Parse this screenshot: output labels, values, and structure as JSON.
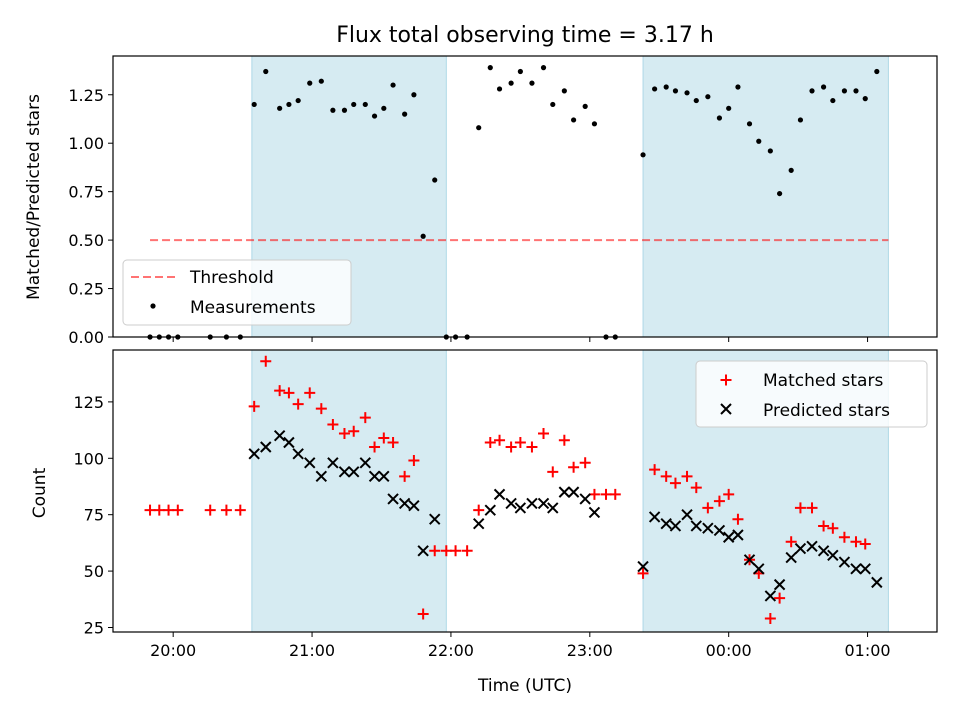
{
  "chart_data": [
    {
      "type": "scatter",
      "title": "Flux total observing time = 3.17 h",
      "xlabel": "",
      "ylabel": "Matched/Predicted stars",
      "xlim": [
        "19:34",
        "01:30"
      ],
      "ylim": [
        0,
        1.45
      ],
      "yticks": [
        "0.00",
        "0.25",
        "0.50",
        "0.75",
        "1.00",
        "1.25"
      ],
      "shaded_ranges": [
        [
          "20:34",
          "21:58"
        ],
        [
          "23:23",
          "01:09"
        ]
      ],
      "threshold": 0.5,
      "threshold_range": [
        "19:50",
        "01:09"
      ],
      "legend": {
        "position": "lower-left",
        "entries": [
          "Threshold",
          "Measurements"
        ]
      },
      "series": [
        {
          "name": "Measurements",
          "points": [
            [
              "19:50",
              0
            ],
            [
              "19:54",
              0
            ],
            [
              "19:58",
              0
            ],
            [
              "20:02",
              0
            ],
            [
              "20:16",
              0
            ],
            [
              "20:23",
              0
            ],
            [
              "20:29",
              0
            ],
            [
              "20:35",
              1.2
            ],
            [
              "20:40",
              1.37
            ],
            [
              "20:46",
              1.18
            ],
            [
              "20:50",
              1.2
            ],
            [
              "20:54",
              1.22
            ],
            [
              "20:59",
              1.31
            ],
            [
              "21:04",
              1.32
            ],
            [
              "21:09",
              1.17
            ],
            [
              "21:14",
              1.17
            ],
            [
              "21:18",
              1.2
            ],
            [
              "21:23",
              1.2
            ],
            [
              "21:27",
              1.14
            ],
            [
              "21:31",
              1.18
            ],
            [
              "21:35",
              1.3
            ],
            [
              "21:40",
              1.15
            ],
            [
              "21:44",
              1.25
            ],
            [
              "21:48",
              0.52
            ],
            [
              "21:53",
              0.81
            ],
            [
              "21:58",
              0
            ],
            [
              "22:02",
              0
            ],
            [
              "22:07",
              0
            ],
            [
              "22:12",
              1.08
            ],
            [
              "22:17",
              1.39
            ],
            [
              "22:21",
              1.28
            ],
            [
              "22:26",
              1.31
            ],
            [
              "22:30",
              1.37
            ],
            [
              "22:35",
              1.31
            ],
            [
              "22:40",
              1.39
            ],
            [
              "22:44",
              1.2
            ],
            [
              "22:49",
              1.27
            ],
            [
              "22:53",
              1.12
            ],
            [
              "22:58",
              1.19
            ],
            [
              "23:02",
              1.1
            ],
            [
              "23:07",
              0
            ],
            [
              "23:11",
              0
            ],
            [
              "23:23",
              0.94
            ],
            [
              "23:28",
              1.28
            ],
            [
              "23:33",
              1.29
            ],
            [
              "23:37",
              1.27
            ],
            [
              "23:42",
              1.26
            ],
            [
              "23:46",
              1.22
            ],
            [
              "23:51",
              1.24
            ],
            [
              "23:56",
              1.13
            ],
            [
              "00:00",
              1.18
            ],
            [
              "00:04",
              1.29
            ],
            [
              "00:09",
              1.1
            ],
            [
              "00:13",
              1.01
            ],
            [
              "00:18",
              0.96
            ],
            [
              "00:22",
              0.74
            ],
            [
              "00:27",
              0.86
            ],
            [
              "00:31",
              1.12
            ],
            [
              "00:36",
              1.27
            ],
            [
              "00:41",
              1.29
            ],
            [
              "00:45",
              1.22
            ],
            [
              "00:50",
              1.27
            ],
            [
              "00:55",
              1.27
            ],
            [
              "00:59",
              1.23
            ],
            [
              "01:04",
              1.37
            ]
          ]
        }
      ]
    },
    {
      "type": "scatter",
      "title": "",
      "xlabel": "Time (UTC)",
      "ylabel": "Count",
      "xlim": [
        "19:34",
        "01:30"
      ],
      "ylim": [
        23,
        148
      ],
      "xticks": [
        "20:00",
        "21:00",
        "22:00",
        "23:00",
        "00:00",
        "01:00"
      ],
      "yticks": [
        "25",
        "50",
        "75",
        "100",
        "125"
      ],
      "shaded_ranges": [
        [
          "20:34",
          "21:58"
        ],
        [
          "23:23",
          "01:09"
        ]
      ],
      "legend": {
        "position": "upper-right",
        "entries": [
          "Matched stars",
          "Predicted stars"
        ]
      },
      "series": [
        {
          "name": "Matched stars",
          "points": [
            [
              "19:50",
              77
            ],
            [
              "19:54",
              77
            ],
            [
              "19:58",
              77
            ],
            [
              "20:02",
              77
            ],
            [
              "20:16",
              77
            ],
            [
              "20:23",
              77
            ],
            [
              "20:29",
              77
            ],
            [
              "20:35",
              123
            ],
            [
              "20:40",
              143
            ],
            [
              "20:46",
              130
            ],
            [
              "20:50",
              129
            ],
            [
              "20:54",
              124
            ],
            [
              "20:59",
              129
            ],
            [
              "21:04",
              122
            ],
            [
              "21:09",
              115
            ],
            [
              "21:14",
              111
            ],
            [
              "21:18",
              112
            ],
            [
              "21:23",
              118
            ],
            [
              "21:27",
              105
            ],
            [
              "21:31",
              109
            ],
            [
              "21:35",
              107
            ],
            [
              "21:40",
              92
            ],
            [
              "21:44",
              99
            ],
            [
              "21:48",
              31
            ],
            [
              "21:53",
              59
            ],
            [
              "21:58",
              59
            ],
            [
              "22:02",
              59
            ],
            [
              "22:07",
              59
            ],
            [
              "22:12",
              77
            ],
            [
              "22:17",
              107
            ],
            [
              "22:21",
              108
            ],
            [
              "22:26",
              105
            ],
            [
              "22:30",
              107
            ],
            [
              "22:35",
              105
            ],
            [
              "22:40",
              111
            ],
            [
              "22:44",
              94
            ],
            [
              "22:49",
              108
            ],
            [
              "22:53",
              96
            ],
            [
              "22:58",
              98
            ],
            [
              "23:02",
              84
            ],
            [
              "23:07",
              84
            ],
            [
              "23:11",
              84
            ],
            [
              "23:23",
              49
            ],
            [
              "23:28",
              95
            ],
            [
              "23:33",
              92
            ],
            [
              "23:37",
              89
            ],
            [
              "23:42",
              92
            ],
            [
              "23:46",
              87
            ],
            [
              "23:51",
              78
            ],
            [
              "23:56",
              81
            ],
            [
              "00:00",
              84
            ],
            [
              "00:04",
              73
            ],
            [
              "00:09",
              55
            ],
            [
              "00:13",
              49
            ],
            [
              "00:18",
              29
            ],
            [
              "00:22",
              38
            ],
            [
              "00:27",
              63
            ],
            [
              "00:31",
              78
            ],
            [
              "00:36",
              78
            ],
            [
              "00:41",
              70
            ],
            [
              "00:45",
              69
            ],
            [
              "00:50",
              65
            ],
            [
              "00:55",
              63
            ],
            [
              "00:59",
              62
            ]
          ]
        },
        {
          "name": "Predicted stars",
          "points": [
            [
              "20:35",
              102
            ],
            [
              "20:40",
              105
            ],
            [
              "20:46",
              110
            ],
            [
              "20:50",
              107
            ],
            [
              "20:54",
              102
            ],
            [
              "20:59",
              98
            ],
            [
              "21:04",
              92
            ],
            [
              "21:09",
              98
            ],
            [
              "21:14",
              94
            ],
            [
              "21:18",
              94
            ],
            [
              "21:23",
              98
            ],
            [
              "21:27",
              92
            ],
            [
              "21:31",
              92
            ],
            [
              "21:35",
              82
            ],
            [
              "21:40",
              80
            ],
            [
              "21:44",
              79
            ],
            [
              "21:48",
              59
            ],
            [
              "21:53",
              73
            ],
            [
              "22:12",
              71
            ],
            [
              "22:17",
              77
            ],
            [
              "22:21",
              84
            ],
            [
              "22:26",
              80
            ],
            [
              "22:30",
              78
            ],
            [
              "22:35",
              80
            ],
            [
              "22:40",
              80
            ],
            [
              "22:44",
              78
            ],
            [
              "22:49",
              85
            ],
            [
              "22:53",
              85
            ],
            [
              "22:58",
              82
            ],
            [
              "23:02",
              76
            ],
            [
              "23:23",
              52
            ],
            [
              "23:28",
              74
            ],
            [
              "23:33",
              71
            ],
            [
              "23:37",
              70
            ],
            [
              "23:42",
              75
            ],
            [
              "23:46",
              70
            ],
            [
              "23:51",
              69
            ],
            [
              "23:56",
              68
            ],
            [
              "00:00",
              65
            ],
            [
              "00:04",
              66
            ],
            [
              "00:09",
              55
            ],
            [
              "00:13",
              51
            ],
            [
              "00:18",
              39
            ],
            [
              "00:22",
              44
            ],
            [
              "00:27",
              56
            ],
            [
              "00:31",
              60
            ],
            [
              "00:36",
              61
            ],
            [
              "00:41",
              59
            ],
            [
              "00:45",
              57
            ],
            [
              "00:50",
              54
            ],
            [
              "00:55",
              51
            ],
            [
              "00:59",
              51
            ],
            [
              "01:04",
              45
            ]
          ]
        }
      ]
    }
  ],
  "colors": {
    "shade": "#add8e6",
    "threshold": "#ff0000",
    "measurement": "#000000",
    "matched": "#ff0000",
    "predicted": "#000000"
  }
}
